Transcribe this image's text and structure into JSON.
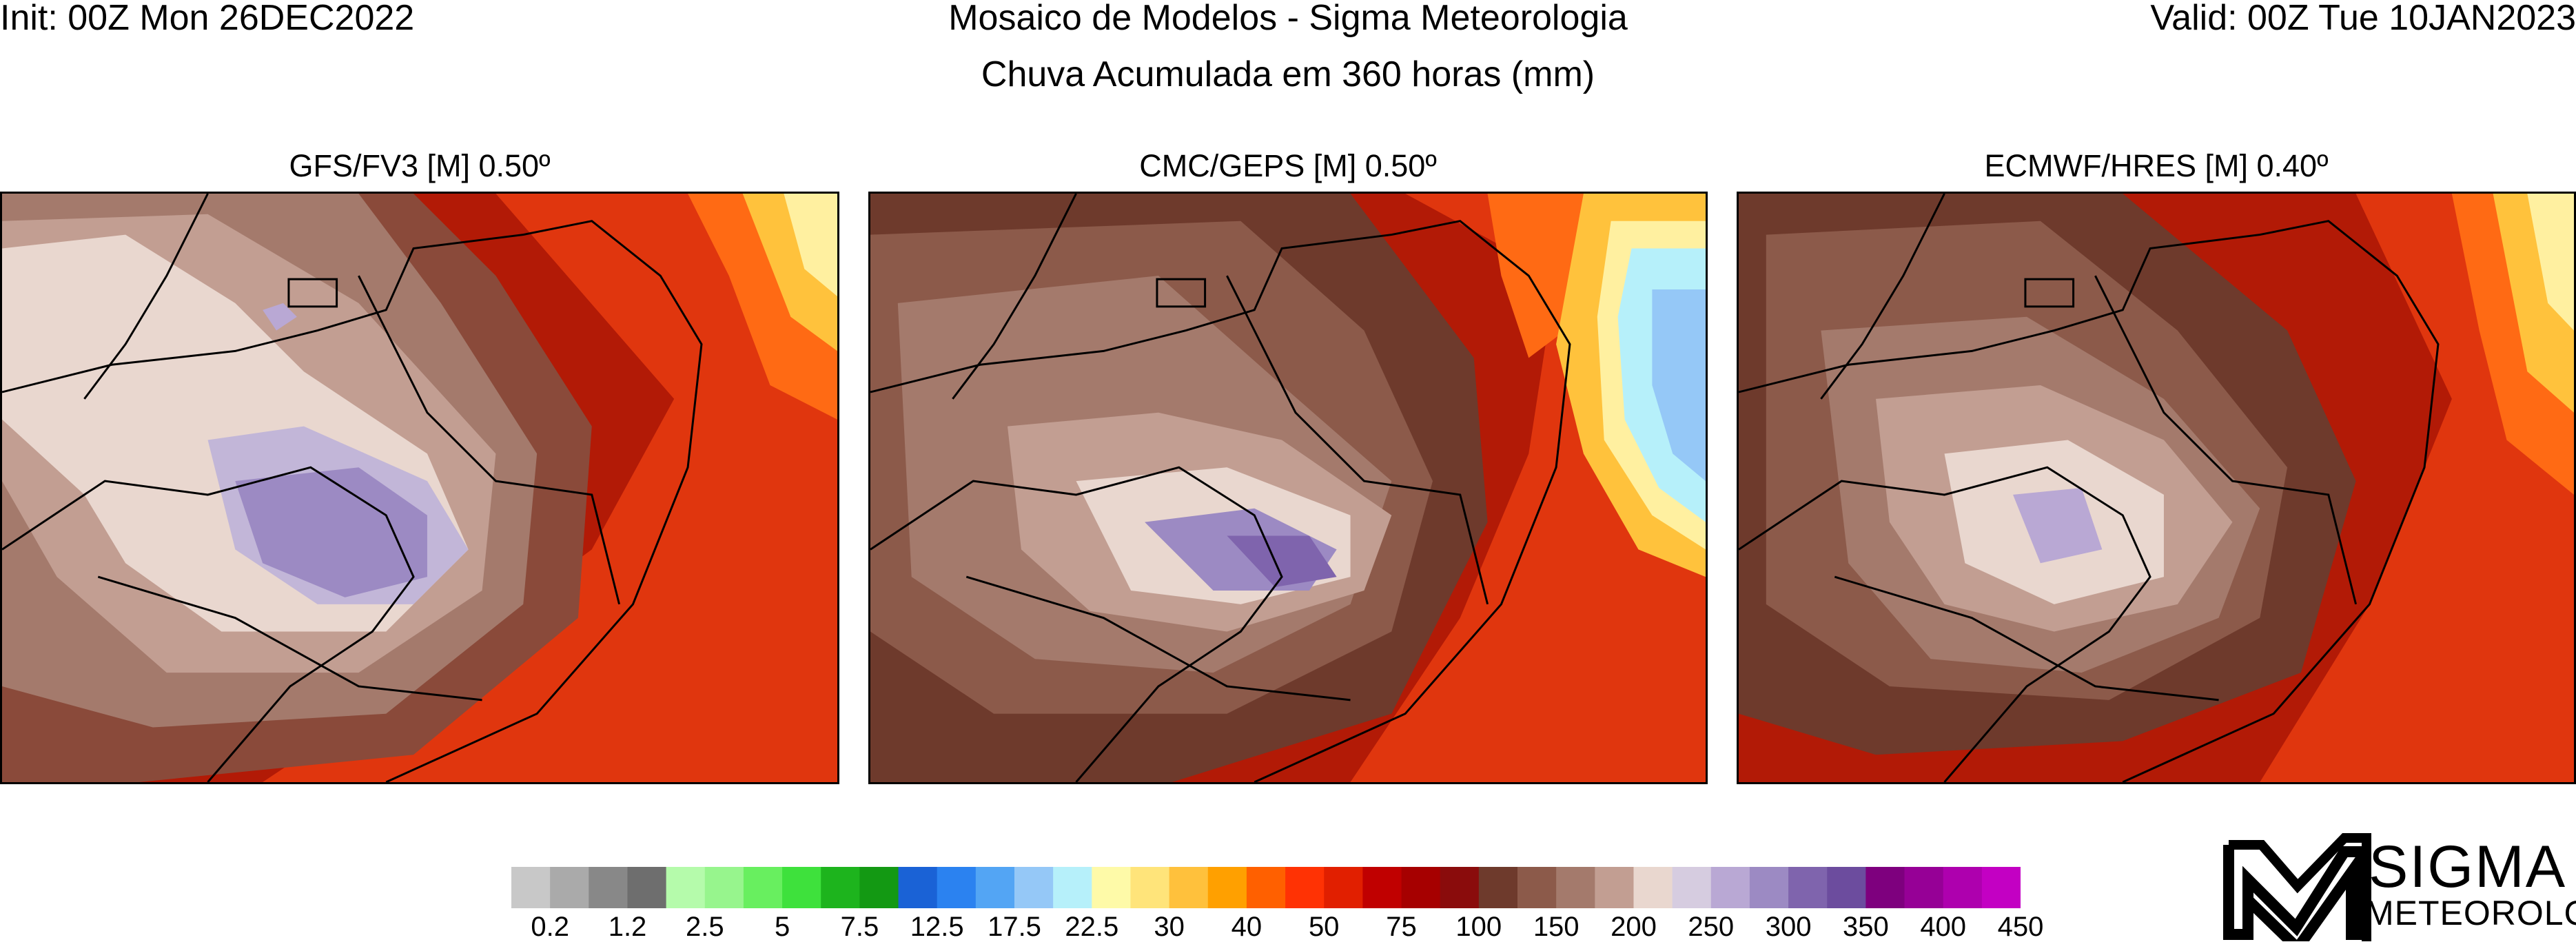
{
  "header": {
    "init": "Init: 00Z Mon 26DEC2022",
    "valid": "Valid: 00Z Tue 10JAN2023",
    "title_line1": "Mosaico de Modelos - Sigma Meteorologia",
    "title_line2": "Chuva Acumulada em 360 horas (mm)"
  },
  "panels": [
    {
      "title": "GFS/FV3 [M] 0.50º"
    },
    {
      "title": "CMC/GEPS [M] 0.50º"
    },
    {
      "title": "ECMWF/HRES [M] 0.40º"
    }
  ],
  "colorbar": {
    "colors": [
      "#c8c8c8",
      "#aaaaaa",
      "#888888",
      "#6e6e6e",
      "#b5fbab",
      "#97f58d",
      "#68ef5f",
      "#3ee13c",
      "#1db41d",
      "#139913",
      "#1a62d6",
      "#2b82f0",
      "#53a5f4",
      "#95c8f7",
      "#b6f0fa",
      "#fefaa8",
      "#ffe47a",
      "#ffc13c",
      "#ffa000",
      "#ff6000",
      "#ff3204",
      "#e11f00",
      "#c00000",
      "#a60000",
      "#8a0c0c",
      "#6e3a2c",
      "#8c5a4a",
      "#a47a6c",
      "#c29e92",
      "#e9d7cf",
      "#d6cce0",
      "#b9a8d4",
      "#9c8ac3",
      "#7f64ad",
      "#6c4c9e",
      "#7e007e",
      "#960096",
      "#ae00ae",
      "#c300c3"
    ],
    "tick_labels": [
      "0.2",
      "1.2",
      "2.5",
      "5",
      "7.5",
      "12.5",
      "17.5",
      "22.5",
      "30",
      "40",
      "50",
      "75",
      "100",
      "150",
      "200",
      "250",
      "300",
      "350",
      "400",
      "450"
    ]
  },
  "logo": {
    "word": "SIGMA",
    "sub": "METEOROLOGIA"
  }
}
